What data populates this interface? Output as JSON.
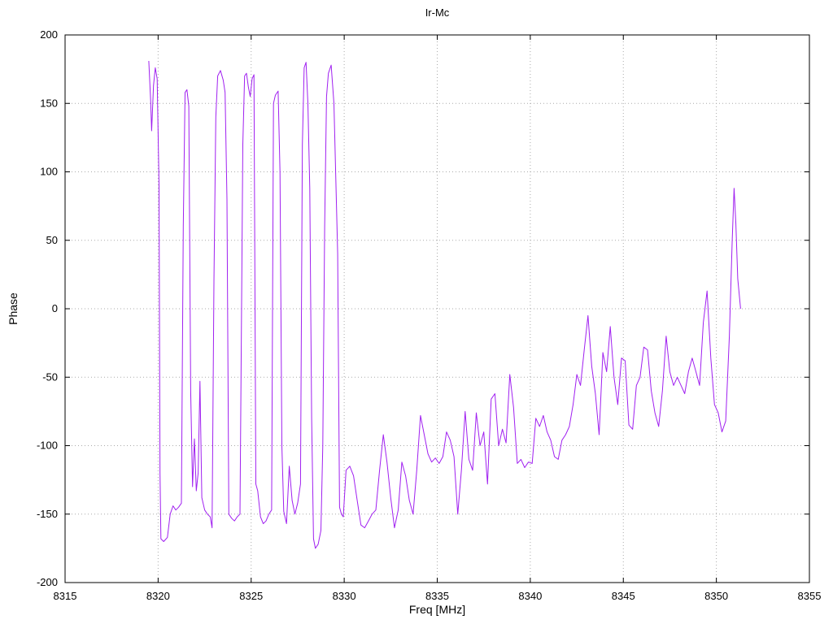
{
  "chart_data": {
    "type": "line",
    "title": "Ir-Mc",
    "xlabel": "Freq [MHz]",
    "ylabel": "Phase",
    "xlim": [
      8315,
      8355
    ],
    "ylim": [
      -200,
      200
    ],
    "xticks": [
      8315,
      8320,
      8325,
      8330,
      8335,
      8340,
      8345,
      8350,
      8355
    ],
    "yticks": [
      -200,
      -150,
      -100,
      -50,
      0,
      50,
      100,
      150,
      200
    ],
    "grid": "dotted",
    "legend": "none",
    "line_color": "#a020f0",
    "grid_color": "#aaaaaa",
    "border_color": "#000000",
    "points": [
      [
        8319.5,
        181
      ],
      [
        8319.6,
        152
      ],
      [
        8319.65,
        130
      ],
      [
        8319.75,
        163
      ],
      [
        8319.85,
        176
      ],
      [
        8319.95,
        168
      ],
      [
        8320.05,
        90
      ],
      [
        8320.1,
        -120
      ],
      [
        8320.15,
        -168
      ],
      [
        8320.3,
        -170
      ],
      [
        8320.5,
        -167
      ],
      [
        8320.65,
        -150
      ],
      [
        8320.8,
        -144
      ],
      [
        8320.95,
        -147
      ],
      [
        8321.1,
        -145
      ],
      [
        8321.25,
        -142
      ],
      [
        8321.35,
        60
      ],
      [
        8321.45,
        158
      ],
      [
        8321.55,
        160
      ],
      [
        8321.65,
        148
      ],
      [
        8321.75,
        -60
      ],
      [
        8321.85,
        -130
      ],
      [
        8321.95,
        -95
      ],
      [
        8322.05,
        -133
      ],
      [
        8322.15,
        -120
      ],
      [
        8322.25,
        -53
      ],
      [
        8322.35,
        -138
      ],
      [
        8322.5,
        -147
      ],
      [
        8322.65,
        -150
      ],
      [
        8322.8,
        -152
      ],
      [
        8322.9,
        -160
      ],
      [
        8323.0,
        20
      ],
      [
        8323.1,
        140
      ],
      [
        8323.2,
        170
      ],
      [
        8323.35,
        174
      ],
      [
        8323.5,
        167
      ],
      [
        8323.6,
        158
      ],
      [
        8323.7,
        80
      ],
      [
        8323.8,
        -150
      ],
      [
        8323.95,
        -153
      ],
      [
        8324.1,
        -155
      ],
      [
        8324.25,
        -152
      ],
      [
        8324.4,
        -150
      ],
      [
        8324.55,
        120
      ],
      [
        8324.65,
        170
      ],
      [
        8324.75,
        172
      ],
      [
        8324.85,
        162
      ],
      [
        8324.95,
        155
      ],
      [
        8325.05,
        168
      ],
      [
        8325.15,
        171
      ],
      [
        8325.25,
        -128
      ],
      [
        8325.35,
        -133
      ],
      [
        8325.5,
        -152
      ],
      [
        8325.65,
        -157
      ],
      [
        8325.8,
        -155
      ],
      [
        8325.95,
        -150
      ],
      [
        8326.1,
        -147
      ],
      [
        8326.2,
        150
      ],
      [
        8326.3,
        156
      ],
      [
        8326.45,
        159
      ],
      [
        8326.55,
        100
      ],
      [
        8326.65,
        -100
      ],
      [
        8326.75,
        -148
      ],
      [
        8326.9,
        -157
      ],
      [
        8327.05,
        -115
      ],
      [
        8327.2,
        -140
      ],
      [
        8327.35,
        -150
      ],
      [
        8327.5,
        -142
      ],
      [
        8327.65,
        -128
      ],
      [
        8327.75,
        120
      ],
      [
        8327.85,
        176
      ],
      [
        8327.95,
        180
      ],
      [
        8328.05,
        150
      ],
      [
        8328.15,
        88
      ],
      [
        8328.25,
        -80
      ],
      [
        8328.35,
        -168
      ],
      [
        8328.45,
        -175
      ],
      [
        8328.6,
        -172
      ],
      [
        8328.75,
        -162
      ],
      [
        8328.85,
        -100
      ],
      [
        8328.95,
        60
      ],
      [
        8329.05,
        155
      ],
      [
        8329.15,
        172
      ],
      [
        8329.3,
        178
      ],
      [
        8329.45,
        150
      ],
      [
        8329.55,
        95
      ],
      [
        8329.65,
        40
      ],
      [
        8329.75,
        -145
      ],
      [
        8329.85,
        -150
      ],
      [
        8329.95,
        -152
      ],
      [
        8330.1,
        -118
      ],
      [
        8330.3,
        -115
      ],
      [
        8330.5,
        -122
      ],
      [
        8330.7,
        -140
      ],
      [
        8330.9,
        -158
      ],
      [
        8331.1,
        -160
      ],
      [
        8331.3,
        -155
      ],
      [
        8331.5,
        -150
      ],
      [
        8331.7,
        -147
      ],
      [
        8331.9,
        -118
      ],
      [
        8332.1,
        -92
      ],
      [
        8332.3,
        -112
      ],
      [
        8332.5,
        -138
      ],
      [
        8332.7,
        -160
      ],
      [
        8332.9,
        -147
      ],
      [
        8333.1,
        -112
      ],
      [
        8333.3,
        -122
      ],
      [
        8333.5,
        -140
      ],
      [
        8333.7,
        -150
      ],
      [
        8333.9,
        -118
      ],
      [
        8334.1,
        -78
      ],
      [
        8334.3,
        -92
      ],
      [
        8334.5,
        -106
      ],
      [
        8334.7,
        -112
      ],
      [
        8334.9,
        -109
      ],
      [
        8335.1,
        -113
      ],
      [
        8335.3,
        -108
      ],
      [
        8335.5,
        -90
      ],
      [
        8335.7,
        -96
      ],
      [
        8335.9,
        -108
      ],
      [
        8336.1,
        -150
      ],
      [
        8336.3,
        -118
      ],
      [
        8336.5,
        -75
      ],
      [
        8336.7,
        -110
      ],
      [
        8336.9,
        -118
      ],
      [
        8337.1,
        -76
      ],
      [
        8337.3,
        -100
      ],
      [
        8337.5,
        -90
      ],
      [
        8337.7,
        -128
      ],
      [
        8337.9,
        -66
      ],
      [
        8338.1,
        -62
      ],
      [
        8338.3,
        -100
      ],
      [
        8338.5,
        -88
      ],
      [
        8338.7,
        -98
      ],
      [
        8338.9,
        -48
      ],
      [
        8339.1,
        -72
      ],
      [
        8339.3,
        -113
      ],
      [
        8339.5,
        -110
      ],
      [
        8339.7,
        -116
      ],
      [
        8339.9,
        -112
      ],
      [
        8340.1,
        -113
      ],
      [
        8340.3,
        -80
      ],
      [
        8340.5,
        -86
      ],
      [
        8340.7,
        -78
      ],
      [
        8340.9,
        -90
      ],
      [
        8341.1,
        -96
      ],
      [
        8341.3,
        -108
      ],
      [
        8341.5,
        -110
      ],
      [
        8341.7,
        -96
      ],
      [
        8341.9,
        -92
      ],
      [
        8342.1,
        -86
      ],
      [
        8342.3,
        -70
      ],
      [
        8342.5,
        -48
      ],
      [
        8342.7,
        -56
      ],
      [
        8342.9,
        -30
      ],
      [
        8343.1,
        -5
      ],
      [
        8343.3,
        -42
      ],
      [
        8343.5,
        -62
      ],
      [
        8343.7,
        -92
      ],
      [
        8343.9,
        -32
      ],
      [
        8344.1,
        -46
      ],
      [
        8344.3,
        -13
      ],
      [
        8344.5,
        -50
      ],
      [
        8344.7,
        -70
      ],
      [
        8344.9,
        -36
      ],
      [
        8345.1,
        -38
      ],
      [
        8345.3,
        -85
      ],
      [
        8345.5,
        -88
      ],
      [
        8345.7,
        -56
      ],
      [
        8345.9,
        -50
      ],
      [
        8346.1,
        -28
      ],
      [
        8346.3,
        -30
      ],
      [
        8346.5,
        -60
      ],
      [
        8346.7,
        -76
      ],
      [
        8346.9,
        -86
      ],
      [
        8347.1,
        -60
      ],
      [
        8347.3,
        -20
      ],
      [
        8347.5,
        -46
      ],
      [
        8347.7,
        -56
      ],
      [
        8347.9,
        -50
      ],
      [
        8348.1,
        -56
      ],
      [
        8348.3,
        -62
      ],
      [
        8348.5,
        -46
      ],
      [
        8348.7,
        -36
      ],
      [
        8348.9,
        -46
      ],
      [
        8349.1,
        -56
      ],
      [
        8349.3,
        -10
      ],
      [
        8349.5,
        13
      ],
      [
        8349.7,
        -36
      ],
      [
        8349.9,
        -70
      ],
      [
        8350.1,
        -76
      ],
      [
        8350.3,
        -90
      ],
      [
        8350.5,
        -82
      ],
      [
        8350.7,
        -20
      ],
      [
        8350.85,
        50
      ],
      [
        8350.95,
        88
      ],
      [
        8351.05,
        62
      ],
      [
        8351.15,
        22
      ],
      [
        8351.3,
        0
      ]
    ]
  }
}
